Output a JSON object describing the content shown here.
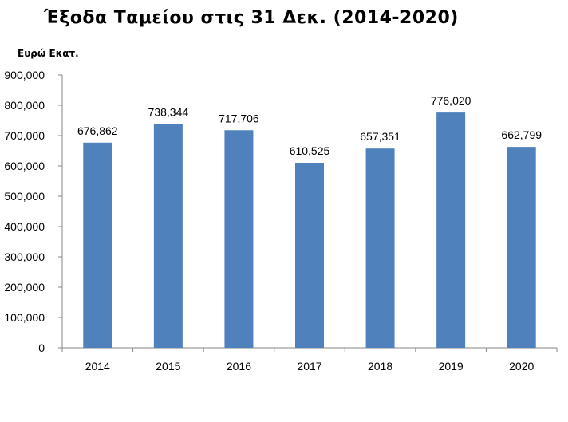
{
  "chart_data": {
    "type": "bar",
    "title": "Έξοδα Ταμείου στις 31 Δεκ. (2014-2020)",
    "ylabel": "Ευρώ Εκατ.",
    "xlabel": "",
    "categories": [
      "2014",
      "2015",
      "2016",
      "2017",
      "2018",
      "2019",
      "2020"
    ],
    "values": [
      676862,
      738344,
      717706,
      610525,
      657351,
      776020,
      662799
    ],
    "data_labels": [
      "676,862",
      "738,344",
      "717,706",
      "610,525",
      "657,351",
      "776,020",
      "662,799"
    ],
    "ylim": [
      0,
      900000
    ],
    "yticks": [
      0,
      100000,
      200000,
      300000,
      400000,
      500000,
      600000,
      700000,
      800000,
      900000
    ],
    "ytick_labels": [
      "0",
      "100,000",
      "200,000",
      "300,000",
      "400,000",
      "500,000",
      "600,000",
      "700,000",
      "800,000",
      "900,000"
    ],
    "grid": false,
    "bar_color": "#4f81bd",
    "axis_color": "#868686"
  }
}
